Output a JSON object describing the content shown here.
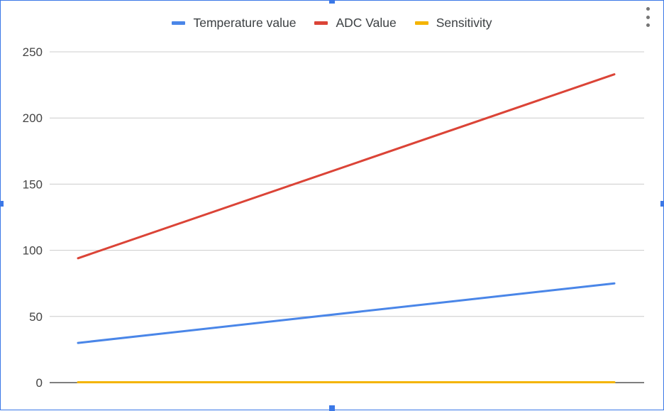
{
  "chart_data": {
    "type": "line",
    "title": "",
    "xlabel": "",
    "ylabel": "",
    "ylim": [
      0,
      250
    ],
    "yticks": [
      "0",
      "50",
      "100",
      "150",
      "200",
      "250"
    ],
    "grid": true,
    "legend_position": "top",
    "x": [
      0,
      1
    ],
    "series": [
      {
        "name": "Temperature value",
        "color": "#4a86e8",
        "values": [
          30,
          75
        ]
      },
      {
        "name": "ADC Value",
        "color": "#db4437",
        "values": [
          94,
          233
        ]
      },
      {
        "name": "Sensitivity",
        "color": "#f4b400",
        "values": [
          0.3,
          0.3
        ]
      }
    ]
  },
  "menu_icon": "more-vert-icon",
  "selection_color": "#3b78e7"
}
